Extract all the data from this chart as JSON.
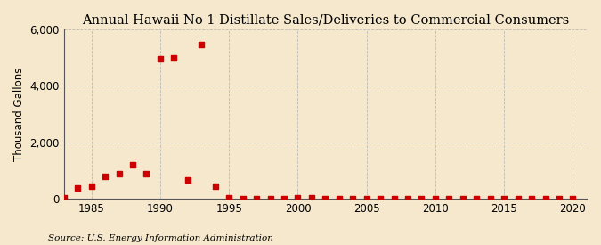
{
  "title": "Annual Hawaii No 1 Distillate Sales/Deliveries to Commercial Consumers",
  "ylabel": "Thousand Gallons",
  "source": "Source: U.S. Energy Information Administration",
  "background_color": "#f5e8cc",
  "plot_bg_color": "#f5e8cc",
  "marker_color": "#cc0000",
  "years": [
    1983,
    1984,
    1985,
    1986,
    1987,
    1988,
    1989,
    1990,
    1991,
    1992,
    1993,
    1994,
    1995,
    1996,
    1997,
    1998,
    1999,
    2000,
    2001,
    2002,
    2003,
    2004,
    2005,
    2006,
    2007,
    2008,
    2009,
    2010,
    2011,
    2012,
    2013,
    2014,
    2015,
    2016,
    2017,
    2018,
    2019,
    2020
  ],
  "values": [
    30,
    380,
    440,
    800,
    870,
    1200,
    870,
    4950,
    5000,
    650,
    5450,
    450,
    20,
    10,
    10,
    10,
    10,
    15,
    15,
    10,
    10,
    10,
    10,
    10,
    5,
    5,
    5,
    10,
    5,
    5,
    5,
    10,
    5,
    5,
    5,
    5,
    5,
    5
  ],
  "xlim": [
    1983,
    2021
  ],
  "ylim": [
    0,
    6000
  ],
  "yticks": [
    0,
    2000,
    4000,
    6000
  ],
  "xticks": [
    1985,
    1990,
    1995,
    2000,
    2005,
    2010,
    2015,
    2020
  ],
  "grid_color": "#bbbbbb",
  "title_fontsize": 10.5,
  "label_fontsize": 8.5,
  "tick_fontsize": 8.5,
  "source_fontsize": 7.5
}
